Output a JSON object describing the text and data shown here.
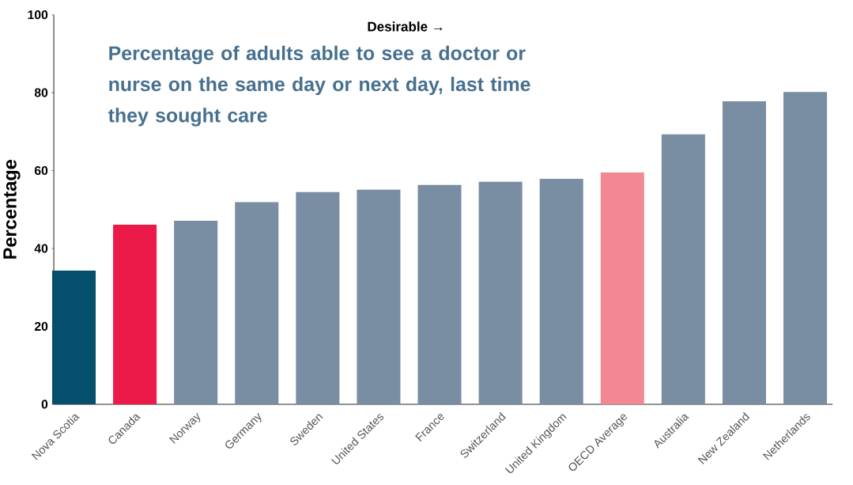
{
  "chart_data": {
    "type": "bar",
    "title": "Percentage of adults able to see a doctor or nurse on the same day or next day, last time they sought care",
    "ylabel": "Percentage",
    "annotations": [
      "Desirable →"
    ],
    "categories": [
      "Nova Scotia",
      "Canada",
      "Norway",
      "Germany",
      "Sweden",
      "United States",
      "France",
      "Switzerland",
      "United Kingdom",
      "OECD Average",
      "Australia",
      "New Zealand",
      "Netherlands"
    ],
    "values": [
      34.3,
      46.1,
      47.1,
      51.9,
      54.5,
      55.1,
      56.3,
      57.1,
      57.9,
      59.5,
      69.3,
      77.8,
      80.2
    ],
    "colors": [
      "#054e6c",
      "#eb1a48",
      "#798da3",
      "#798da3",
      "#798da3",
      "#798da3",
      "#798da3",
      "#798da3",
      "#798da3",
      "#f28891",
      "#798da3",
      "#798da3",
      "#798da3"
    ],
    "ylim": [
      0,
      100
    ],
    "yticks": [
      0,
      20,
      40,
      60,
      80,
      100
    ],
    "grid": false
  }
}
